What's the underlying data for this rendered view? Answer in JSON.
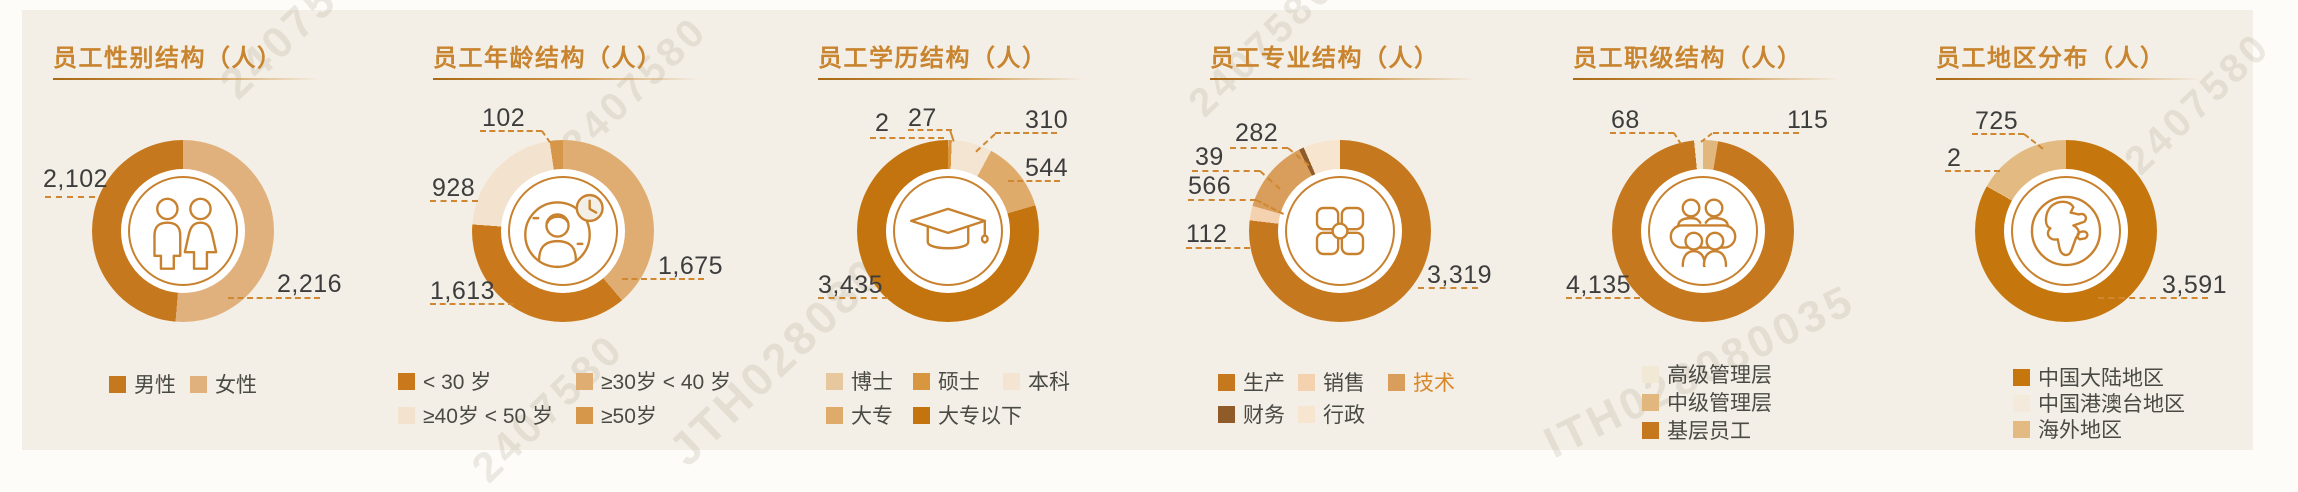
{
  "chart_data": [
    {
      "type": "donut",
      "title": "员工性别结构（人）",
      "icon": "male-female-icon",
      "items": [
        {
          "label": "男性",
          "value": 2102,
          "display": "2,102",
          "color": "#C5781D"
        },
        {
          "label": "女性",
          "value": 2216,
          "display": "2,216",
          "color": "#E0B17C"
        }
      ]
    },
    {
      "type": "donut",
      "title": "员工年龄结构（人）",
      "icon": "person-clock-icon",
      "items": [
        {
          "label": "< 30 岁",
          "value": 1613,
          "display": "1,613",
          "color": "#C9791B"
        },
        {
          "label": "≥30岁 < 40 岁",
          "value": 1675,
          "display": "1,675",
          "color": "#DFAD72"
        },
        {
          "label": "≥40岁 < 50 岁",
          "value": 928,
          "display": "928",
          "color": "#F3E3CE"
        },
        {
          "label": "≥50岁",
          "value": 102,
          "display": "102",
          "color": "#D6974B"
        }
      ]
    },
    {
      "type": "donut",
      "title": "员工学历结构（人）",
      "icon": "graduation-cap-icon",
      "items": [
        {
          "label": "博士",
          "value": 2,
          "display": "2",
          "color": "#E7C79D"
        },
        {
          "label": "硕士",
          "value": 27,
          "display": "27",
          "color": "#D8963F"
        },
        {
          "label": "本科",
          "value": 310,
          "display": "310",
          "color": "#F3E5D1"
        },
        {
          "label": "大专",
          "value": 544,
          "display": "544",
          "color": "#DFAB6B"
        },
        {
          "label": "大专以下",
          "value": 3435,
          "display": "3,435",
          "color": "#C4740F"
        }
      ]
    },
    {
      "type": "donut",
      "title": "员工专业结构（人）",
      "icon": "modules-icon",
      "items": [
        {
          "label": "生产",
          "value": 3319,
          "display": "3,319",
          "color": "#C5781D"
        },
        {
          "label": "销售",
          "value": 112,
          "display": "112",
          "color": "#F5D2AF"
        },
        {
          "label": "技术",
          "value": 566,
          "display": "566",
          "color": "#D99E5B",
          "text_color": "#D8892B"
        },
        {
          "label": "财务",
          "value": 39,
          "display": "39",
          "color": "#8F5B28"
        },
        {
          "label": "行政",
          "value": 282,
          "display": "282",
          "color": "#F8E5D0"
        }
      ]
    },
    {
      "type": "donut",
      "title": "员工职级结构（人）",
      "icon": "team-meeting-icon",
      "items": [
        {
          "label": "高级管理层",
          "value": 68,
          "display": "68",
          "color": "#F2E8D6"
        },
        {
          "label": "中级管理层",
          "value": 115,
          "display": "115",
          "color": "#E2B77E"
        },
        {
          "label": "基层员工",
          "value": 4135,
          "display": "4,135",
          "color": "#C5781D"
        }
      ]
    },
    {
      "type": "donut",
      "title": "员工地区分布（人）",
      "icon": "globe-icon",
      "items": [
        {
          "label": "中国大陆地区",
          "value": 3591,
          "display": "3,591",
          "color": "#C5770E"
        },
        {
          "label": "中国港澳台地区",
          "value": 2,
          "display": "2",
          "color": "#F3EADB"
        },
        {
          "label": "海外地区",
          "value": 725,
          "display": "725",
          "color": "#E3BA82"
        }
      ]
    }
  ],
  "watermarks": [
    "2407580",
    "2407580",
    "2407580",
    "2407580",
    "2407580",
    "JTH028080035",
    "ITH028080035"
  ],
  "colors": {
    "accent_orange": "#C8842E",
    "leader_line": "#CF8831",
    "value_text": "#3D3D3D",
    "legend_text": "#4A4A45",
    "panel_background": "#F4EFE6"
  }
}
